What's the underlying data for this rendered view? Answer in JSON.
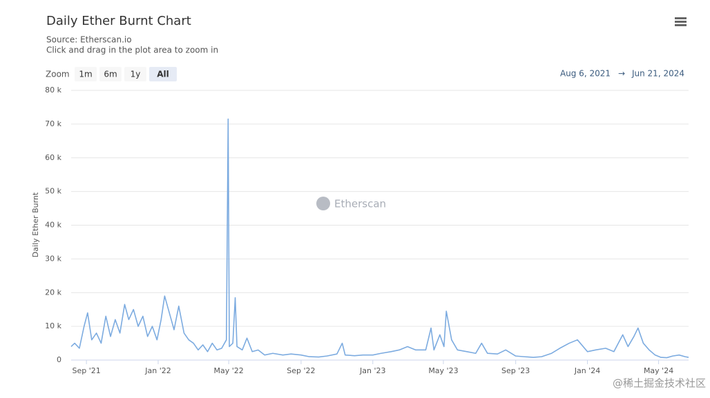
{
  "chart_data": {
    "type": "line",
    "title": "Daily Ether Burnt Chart",
    "source": "Source: Etherscan.io",
    "subtitle": "Click and drag in the plot area to zoom in",
    "zoom_label": "Zoom",
    "zoom_buttons": [
      "1m",
      "6m",
      "1y",
      "All"
    ],
    "range_from": "Aug 6, 2021",
    "range_separator": "→",
    "range_to": "Jun 21, 2024",
    "watermark": "Etherscan",
    "corner_watermark": "@稀土掘金技术社区",
    "y_label": "Daily Ether Burnt",
    "color": "#7cabe0",
    "grid": true,
    "xlim": [
      "2021-08-06",
      "2024-06-21"
    ],
    "xticks": [
      {
        "value": "2021-09-01",
        "label": "Sep '21"
      },
      {
        "value": "2022-01-01",
        "label": "Jan '22"
      },
      {
        "value": "2022-05-01",
        "label": "May '22"
      },
      {
        "value": "2022-09-01",
        "label": "Sep '22"
      },
      {
        "value": "2023-01-01",
        "label": "Jan '23"
      },
      {
        "value": "2023-05-01",
        "label": "May '23"
      },
      {
        "value": "2023-09-01",
        "label": "Sep '23"
      },
      {
        "value": "2024-01-01",
        "label": "Jan '24"
      },
      {
        "value": "2024-05-01",
        "label": "May '24"
      }
    ],
    "ylim": [
      0,
      80000
    ],
    "yticks": [
      0,
      {
        "value": 10000,
        "label": "10 k"
      },
      {
        "value": 20000,
        "label": "20 k"
      },
      {
        "value": 30000,
        "label": "30 k"
      },
      {
        "value": 40000,
        "label": "40 k"
      },
      {
        "value": 50000,
        "label": "50 k"
      },
      {
        "value": 60000,
        "label": "60 k"
      },
      {
        "value": 70000,
        "label": "70 k"
      },
      {
        "value": 80000,
        "label": "80 k"
      }
    ],
    "x": [
      "2021-08-06",
      "2021-08-12",
      "2021-08-20",
      "2021-08-28",
      "2021-09-03",
      "2021-09-10",
      "2021-09-18",
      "2021-09-26",
      "2021-10-04",
      "2021-10-12",
      "2021-10-20",
      "2021-10-28",
      "2021-11-05",
      "2021-11-12",
      "2021-11-20",
      "2021-11-28",
      "2021-12-06",
      "2021-12-14",
      "2021-12-22",
      "2021-12-30",
      "2022-01-06",
      "2022-01-12",
      "2022-01-20",
      "2022-01-28",
      "2022-02-05",
      "2022-02-14",
      "2022-02-22",
      "2022-03-02",
      "2022-03-10",
      "2022-03-18",
      "2022-03-26",
      "2022-04-03",
      "2022-04-11",
      "2022-04-19",
      "2022-04-27",
      "2022-04-30",
      "2022-05-02",
      "2022-05-08",
      "2022-05-12",
      "2022-05-15",
      "2022-05-24",
      "2022-06-01",
      "2022-06-10",
      "2022-06-20",
      "2022-07-01",
      "2022-07-15",
      "2022-08-01",
      "2022-08-15",
      "2022-09-01",
      "2022-09-15",
      "2022-10-01",
      "2022-10-15",
      "2022-11-01",
      "2022-11-10",
      "2022-11-15",
      "2022-12-01",
      "2022-12-15",
      "2023-01-01",
      "2023-01-15",
      "2023-02-01",
      "2023-02-15",
      "2023-03-01",
      "2023-03-15",
      "2023-04-01",
      "2023-04-10",
      "2023-04-15",
      "2023-04-25",
      "2023-05-02",
      "2023-05-06",
      "2023-05-15",
      "2023-05-25",
      "2023-06-10",
      "2023-06-25",
      "2023-07-05",
      "2023-07-15",
      "2023-08-01",
      "2023-08-15",
      "2023-09-01",
      "2023-09-15",
      "2023-10-01",
      "2023-10-15",
      "2023-11-01",
      "2023-11-15",
      "2023-12-01",
      "2023-12-15",
      "2024-01-01",
      "2024-01-15",
      "2024-02-01",
      "2024-02-15",
      "2024-03-01",
      "2024-03-10",
      "2024-03-20",
      "2024-03-27",
      "2024-04-05",
      "2024-04-15",
      "2024-04-25",
      "2024-05-05",
      "2024-05-15",
      "2024-05-25",
      "2024-06-05",
      "2024-06-15",
      "2024-06-21"
    ],
    "values": [
      4000,
      5000,
      3500,
      10000,
      14000,
      6000,
      8000,
      5000,
      13000,
      7000,
      12000,
      8000,
      16500,
      12000,
      15000,
      10000,
      13000,
      7000,
      10000,
      6000,
      12000,
      19000,
      14000,
      9000,
      16000,
      8000,
      6000,
      5000,
      3000,
      4500,
      2500,
      5000,
      3000,
      3500,
      6000,
      71500,
      4000,
      5000,
      18500,
      4000,
      3000,
      6500,
      2500,
      3000,
      1500,
      2000,
      1500,
      1800,
      1500,
      1000,
      900,
      1200,
      1800,
      5000,
      1500,
      1300,
      1500,
      1500,
      2000,
      2500,
      3000,
      4000,
      3000,
      3000,
      9500,
      3000,
      7500,
      4000,
      14500,
      6000,
      3000,
      2500,
      2000,
      5000,
      2000,
      1800,
      3000,
      1200,
      1000,
      800,
      1000,
      2000,
      3500,
      5000,
      6000,
      2500,
      3000,
      3500,
      2500,
      7500,
      4000,
      7000,
      9500,
      5000,
      3000,
      1500,
      800,
      700,
      1200,
      1500,
      1000,
      800
    ]
  }
}
